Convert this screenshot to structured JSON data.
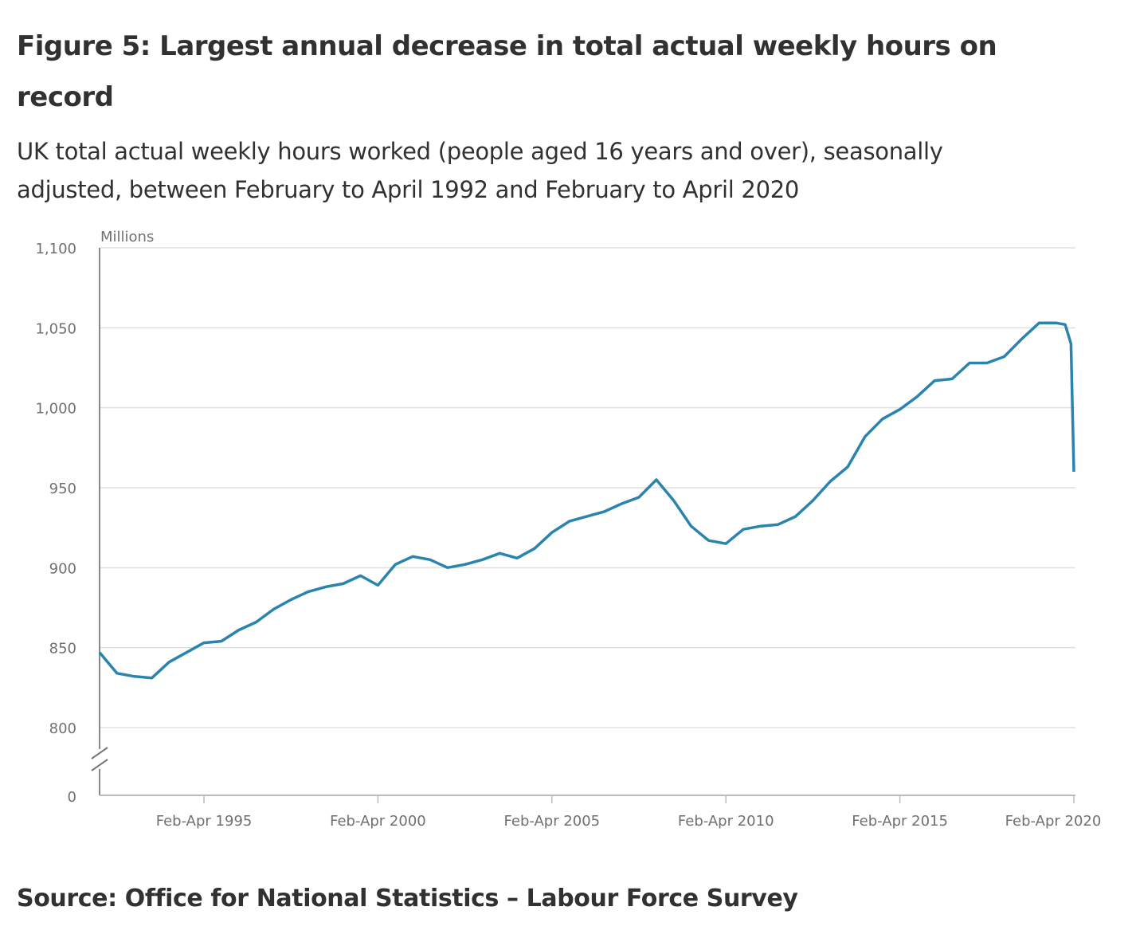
{
  "title": "Figure 5: Largest annual decrease in total actual weekly hours on record",
  "subtitle": "UK total actual weekly hours worked (people aged 16 years and over), seasonally adjusted, between February to April 1992 and February to April 2020",
  "source": "Source: Office for National Statistics – Labour Force Survey",
  "chart_data": {
    "type": "line",
    "title": "Figure 5: Largest annual decrease in total actual weekly hours on record",
    "ylabel": "Millions",
    "xlabel": "",
    "ylim": [
      800,
      1100
    ],
    "y_axis_break": "between 0 and 800",
    "yticks": [
      "0",
      "800",
      "850",
      "900",
      "950",
      "1,000",
      "1,050",
      "1,100"
    ],
    "ytick_values": [
      800,
      850,
      900,
      950,
      1000,
      1050,
      1100
    ],
    "xticks": [
      "Feb-Apr 1995",
      "Feb-Apr 2000",
      "Feb-Apr 2005",
      "Feb-Apr 2010",
      "Feb-Apr 2015",
      "Feb-Apr 2020"
    ],
    "grid": "horizontal",
    "line_color": "#2a84ad",
    "x": [
      "Feb-Apr 1992",
      "Aug-Oct 1992",
      "Feb-Apr 1993",
      "Aug-Oct 1993",
      "Feb-Apr 1994",
      "Aug-Oct 1994",
      "Feb-Apr 1995",
      "Aug-Oct 1995",
      "Feb-Apr 1996",
      "Aug-Oct 1996",
      "Feb-Apr 1997",
      "Aug-Oct 1997",
      "Feb-Apr 1998",
      "Aug-Oct 1998",
      "Feb-Apr 1999",
      "Aug-Oct 1999",
      "Feb-Apr 2000",
      "Aug-Oct 2000",
      "Feb-Apr 2001",
      "Aug-Oct 2001",
      "Feb-Apr 2002",
      "Aug-Oct 2002",
      "Feb-Apr 2003",
      "Aug-Oct 2003",
      "Feb-Apr 2004",
      "Aug-Oct 2004",
      "Feb-Apr 2005",
      "Aug-Oct 2005",
      "Feb-Apr 2006",
      "Aug-Oct 2006",
      "Feb-Apr 2007",
      "Aug-Oct 2007",
      "Feb-Apr 2008",
      "Aug-Oct 2008",
      "Feb-Apr 2009",
      "Aug-Oct 2009",
      "Feb-Apr 2010",
      "Aug-Oct 2010",
      "Feb-Apr 2011",
      "Aug-Oct 2011",
      "Feb-Apr 2012",
      "Aug-Oct 2012",
      "Feb-Apr 2013",
      "Aug-Oct 2013",
      "Feb-Apr 2014",
      "Aug-Oct 2014",
      "Feb-Apr 2015",
      "Aug-Oct 2015",
      "Feb-Apr 2016",
      "Aug-Oct 2016",
      "Feb-Apr 2017",
      "Aug-Oct 2017",
      "Feb-Apr 2018",
      "Aug-Oct 2018",
      "Feb-Apr 2019",
      "Aug-Oct 2019",
      "Nov-Jan 2020",
      "Jan-Mar 2020",
      "Feb-Apr 2020"
    ],
    "values": [
      847,
      834,
      832,
      831,
      841,
      847,
      853,
      854,
      861,
      866,
      874,
      880,
      885,
      888,
      890,
      895,
      889,
      902,
      907,
      905,
      900,
      902,
      905,
      909,
      906,
      912,
      922,
      929,
      932,
      935,
      940,
      944,
      955,
      942,
      926,
      917,
      915,
      924,
      926,
      927,
      932,
      942,
      954,
      963,
      982,
      993,
      999,
      1007,
      1017,
      1018,
      1028,
      1028,
      1032,
      1043,
      1053,
      1053,
      1052,
      1040,
      960
    ]
  }
}
